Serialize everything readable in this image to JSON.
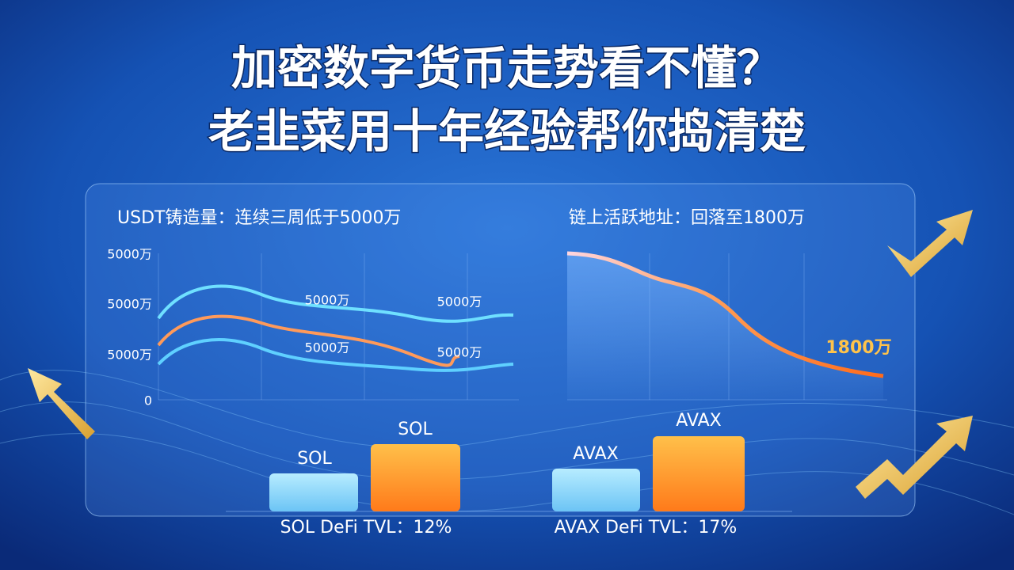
{
  "title": [
    "加密数字货币走势看不懂？",
    "老韭菜用十年经验帮你捣清楚"
  ],
  "left_panel": {
    "heading": "USDT铸造量：连续三周低于5000万",
    "y_labels": [
      "5000万",
      "5000万",
      "5000万",
      "0"
    ],
    "line_labels": [
      "5000万",
      "5000万",
      "5000万",
      "5000万"
    ]
  },
  "right_panel": {
    "heading": "链上活跃地址：回落至1800万",
    "end_label": "1800万"
  },
  "left_bars": {
    "labels": [
      "SOL",
      "SOL"
    ],
    "caption": "SOL DeFi TVL：12%"
  },
  "right_bars": {
    "labels": [
      "AVAX",
      "AVAX"
    ],
    "caption": "AVAX DeFi TVL：17%"
  }
}
